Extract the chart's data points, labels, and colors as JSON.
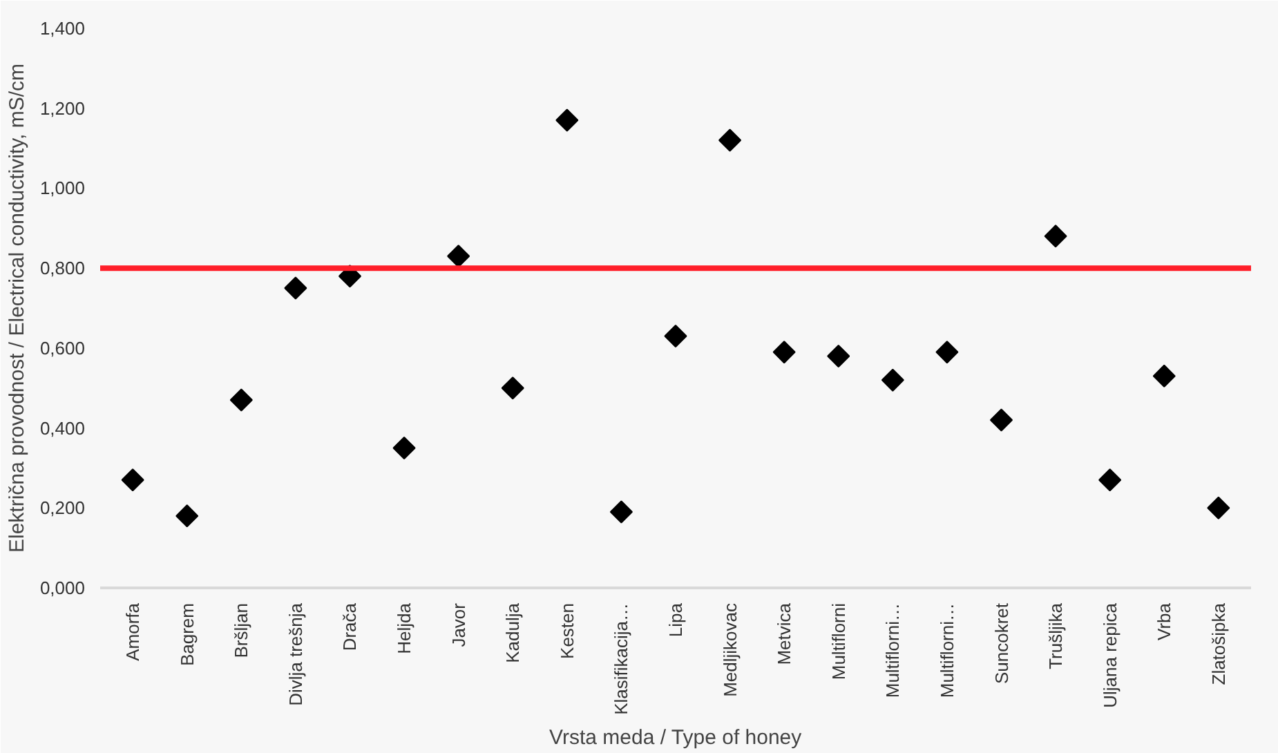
{
  "chart_data": {
    "type": "scatter",
    "xlabel": "Vrsta meda / Type of honey",
    "ylabel": "Električna provodnost / Electrical conductivity, mS/cm",
    "categories": [
      "Amorfa",
      "Bagrem",
      "Bršljan",
      "Divlja trešnja",
      "Drača",
      "Heljda",
      "Javor",
      "Kadulja",
      "Kesten",
      "Klasifikacija…",
      "Lipa",
      "Medljikovac",
      "Metvica",
      "Multiflorni",
      "Multiflorni…",
      "Multiflorni…",
      "Suncokret",
      "Trušljika",
      "Uljana repica",
      "Vrba",
      "Zlatošipka"
    ],
    "series": [
      {
        "color": "#000000",
        "values": [
          0.27,
          0.18,
          0.47,
          0.75,
          0.78,
          0.35,
          0.83,
          0.5,
          1.17,
          0.19,
          0.63,
          1.12,
          0.59,
          0.58,
          0.52,
          0.59,
          0.42,
          0.88,
          0.27,
          0.53,
          0.2
        ]
      }
    ],
    "marker": "diamond",
    "ylim": [
      0,
      1.4
    ],
    "yticks": [
      {
        "value": 0,
        "label": "0,000"
      },
      {
        "value": 0.2,
        "label": "0,200"
      },
      {
        "value": 0.4,
        "label": "0,400"
      },
      {
        "value": 0.6,
        "label": "0,600"
      },
      {
        "value": 0.8,
        "label": "0,800"
      },
      {
        "value": 1.0,
        "label": "1,000"
      },
      {
        "value": 1.2,
        "label": "1,200"
      },
      {
        "value": 1.4,
        "label": "1,400"
      }
    ],
    "ref_lines": [
      {
        "axis": "y",
        "value": 0.8,
        "color": "#ff1f2a",
        "line_style": "solid"
      }
    ],
    "grid": false
  }
}
